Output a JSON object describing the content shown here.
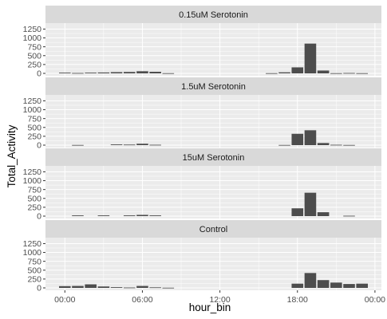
{
  "chart_data": {
    "type": "bar",
    "xlabel": "hour_bin",
    "ylabel": "Total_Activity",
    "x_tick_labels": [
      "00:00",
      "06:00",
      "12:00",
      "18:00",
      "00:00"
    ],
    "y_tick_labels": [
      "0",
      "250",
      "500",
      "750",
      "1000",
      "1250"
    ],
    "ylim": [
      0,
      1350
    ],
    "x_range_hours": [
      -1.5,
      24.5
    ],
    "bar_color": "#4d4d4d",
    "panel_bg": "#ebebeb",
    "strip_bg": "#d9d9d9",
    "grid_color": "#ffffff",
    "panels": [
      {
        "title": "0.15uM Serotonin",
        "bars": [
          {
            "hour": 0,
            "value": 20
          },
          {
            "hour": 1,
            "value": 10
          },
          {
            "hour": 2,
            "value": 20
          },
          {
            "hour": 3,
            "value": 25
          },
          {
            "hour": 4,
            "value": 35
          },
          {
            "hour": 5,
            "value": 40
          },
          {
            "hour": 6,
            "value": 60
          },
          {
            "hour": 7,
            "value": 45
          },
          {
            "hour": 8,
            "value": 5
          },
          {
            "hour": 16,
            "value": 5
          },
          {
            "hour": 17,
            "value": 30
          },
          {
            "hour": 18,
            "value": 170
          },
          {
            "hour": 19,
            "value": 840
          },
          {
            "hour": 20,
            "value": 80
          },
          {
            "hour": 21,
            "value": 5
          },
          {
            "hour": 22,
            "value": 10
          },
          {
            "hour": 23,
            "value": 5
          }
        ]
      },
      {
        "title": "1.5uM Serotonin",
        "bars": [
          {
            "hour": 1,
            "value": 5
          },
          {
            "hour": 4,
            "value": 20
          },
          {
            "hour": 5,
            "value": 15
          },
          {
            "hour": 6,
            "value": 40
          },
          {
            "hour": 7,
            "value": 10
          },
          {
            "hour": 17,
            "value": 5
          },
          {
            "hour": 18,
            "value": 320
          },
          {
            "hour": 19,
            "value": 420
          },
          {
            "hour": 20,
            "value": 60
          },
          {
            "hour": 21,
            "value": 10
          },
          {
            "hour": 22,
            "value": 5
          }
        ]
      },
      {
        "title": "15uM Serotonin",
        "bars": [
          {
            "hour": 1,
            "value": 20
          },
          {
            "hour": 3,
            "value": 20
          },
          {
            "hour": 5,
            "value": 20
          },
          {
            "hour": 6,
            "value": 35
          },
          {
            "hour": 7,
            "value": 20
          },
          {
            "hour": 18,
            "value": 220
          },
          {
            "hour": 19,
            "value": 660
          },
          {
            "hour": 20,
            "value": 110
          },
          {
            "hour": 22,
            "value": 10
          }
        ]
      },
      {
        "title": "Control",
        "bars": [
          {
            "hour": 0,
            "value": 50
          },
          {
            "hour": 1,
            "value": 55
          },
          {
            "hour": 2,
            "value": 100
          },
          {
            "hour": 3,
            "value": 40
          },
          {
            "hour": 4,
            "value": 20
          },
          {
            "hour": 5,
            "value": 10
          },
          {
            "hour": 6,
            "value": 55
          },
          {
            "hour": 7,
            "value": 15
          },
          {
            "hour": 8,
            "value": 5
          },
          {
            "hour": 18,
            "value": 120
          },
          {
            "hour": 19,
            "value": 420
          },
          {
            "hour": 20,
            "value": 220
          },
          {
            "hour": 21,
            "value": 150
          },
          {
            "hour": 22,
            "value": 110
          },
          {
            "hour": 23,
            "value": 120
          }
        ]
      }
    ]
  }
}
